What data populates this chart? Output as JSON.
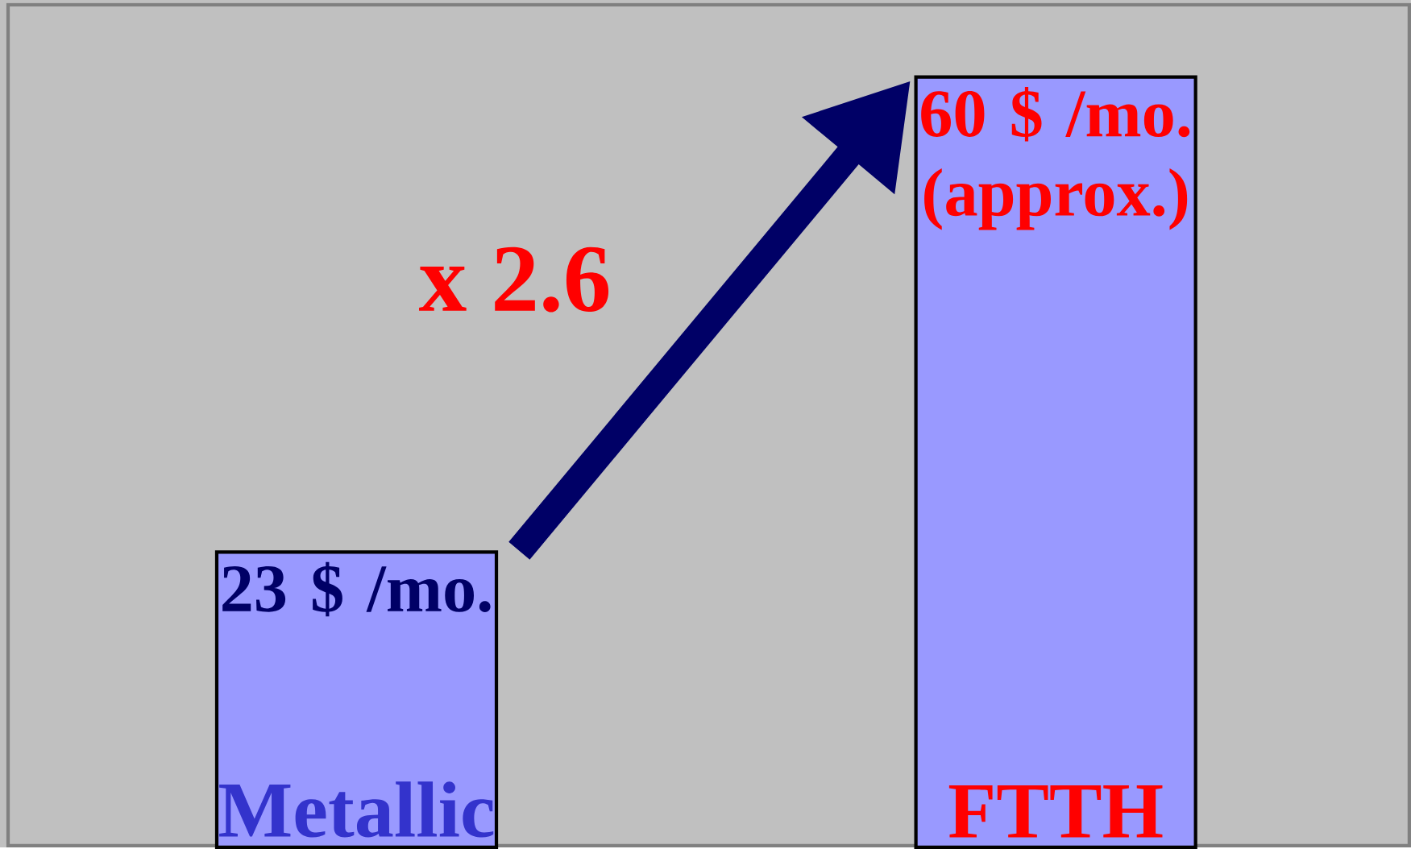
{
  "chart_data": {
    "type": "bar",
    "categories": [
      "Metallic",
      "FTTH"
    ],
    "values": [
      23,
      60
    ],
    "colors": [
      "#9999ff",
      "#9999ff"
    ],
    "value_labels": [
      "23 $ /mo.",
      "60 $ /mo. (approx.)"
    ],
    "annotations": [
      "x 2.6"
    ]
  }
}
